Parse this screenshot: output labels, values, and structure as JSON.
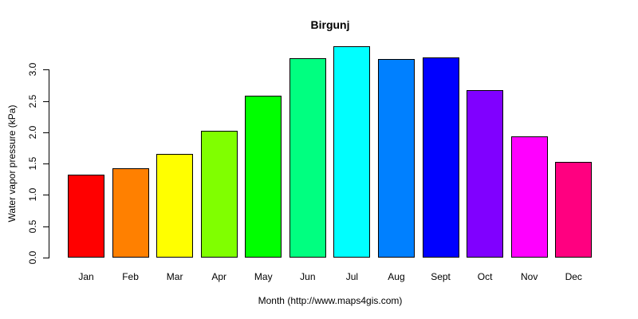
{
  "chart_data": {
    "type": "bar",
    "title": "Birgunj",
    "xlabel": "Month (http://www.maps4gis.com)",
    "ylabel": "Water vapor pressure (kPa)",
    "categories": [
      "Jan",
      "Feb",
      "Mar",
      "Apr",
      "May",
      "Jun",
      "Jul",
      "Aug",
      "Sept",
      "Oct",
      "Nov",
      "Dec"
    ],
    "values": [
      1.32,
      1.42,
      1.65,
      2.02,
      2.58,
      3.18,
      3.38,
      3.17,
      3.2,
      2.67,
      1.94,
      1.53
    ],
    "bar_colors": [
      "#FF0000",
      "#FF8000",
      "#FFFF00",
      "#80FF00",
      "#00FF00",
      "#00FF80",
      "#00FFFF",
      "#0080FF",
      "#0000FF",
      "#8000FF",
      "#FF00FF",
      "#FF0080"
    ],
    "bar_border_color": "#000000",
    "yticks": [
      0,
      0.5,
      1,
      1.5,
      2,
      2.5,
      3
    ],
    "ytick_labels": [
      "0.0",
      "0.5",
      "1.0",
      "1.5",
      "2.0",
      "2.5",
      "3.0"
    ],
    "ylim": [
      0,
      3.45
    ],
    "grid": false,
    "legend": false,
    "background_color": "#FFFFFF",
    "text_color": "#000000"
  }
}
